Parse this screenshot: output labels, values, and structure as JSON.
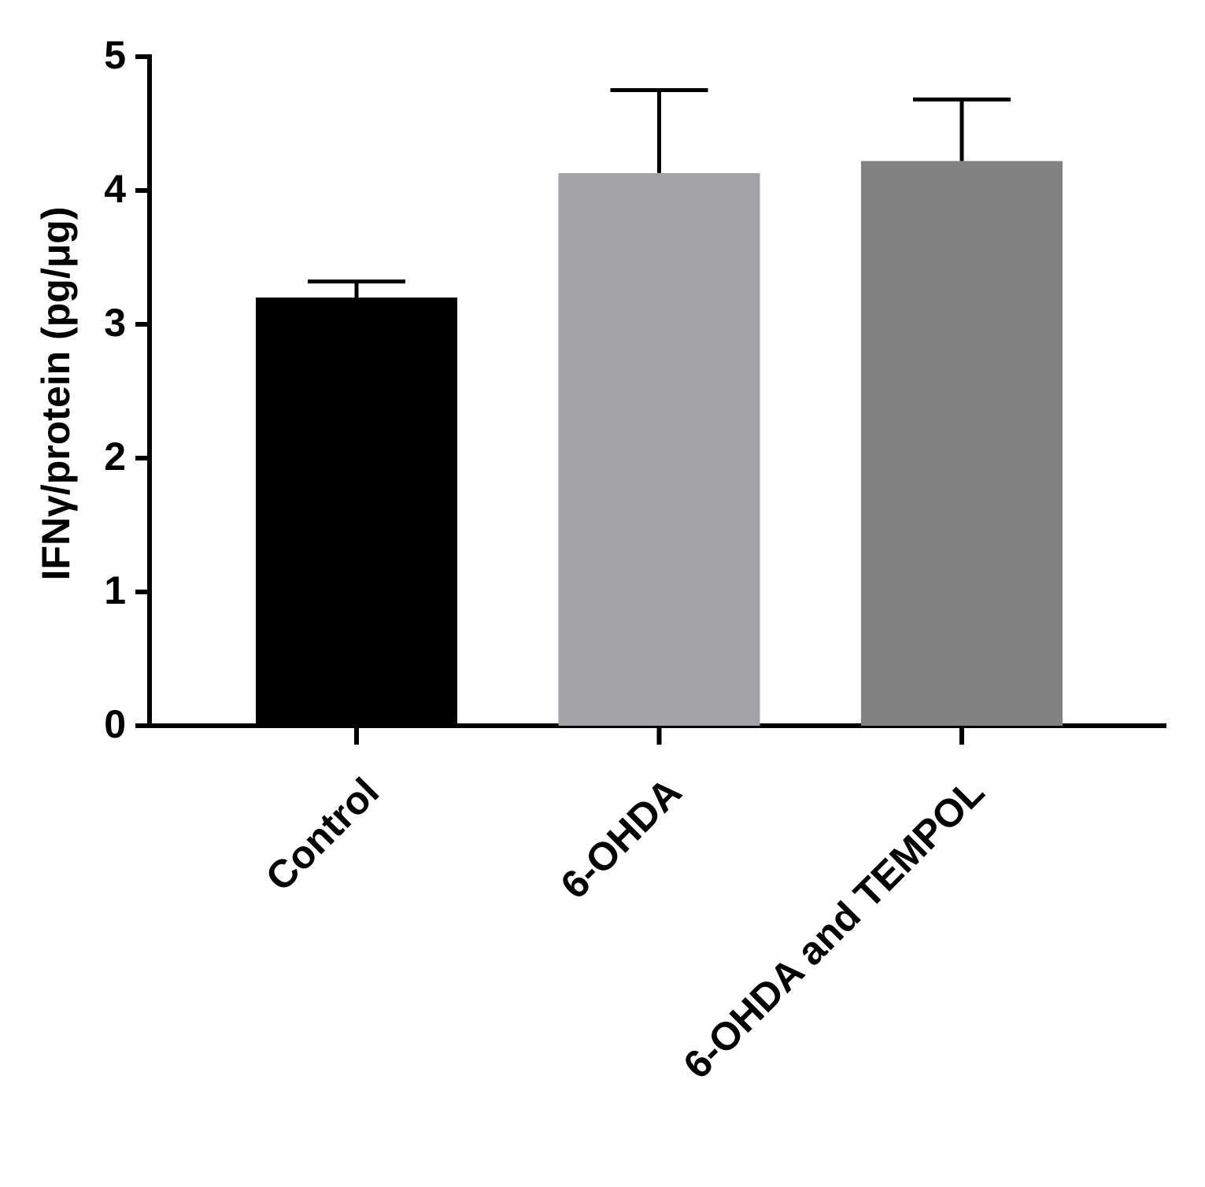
{
  "chart_data": {
    "type": "bar",
    "y_label": "IFNγ/protein (pg/μg)",
    "categories": [
      "Control",
      "6-OHDA",
      "6-OHDA and TEMPOL"
    ],
    "values": [
      3.2,
      4.13,
      4.22
    ],
    "errors": [
      0.12,
      0.62,
      0.46
    ],
    "colors": [
      "#000000",
      "#a3a2a7",
      "#828282"
    ],
    "ylim": [
      0,
      5
    ],
    "yticks": [
      0,
      1,
      2,
      3,
      4,
      5
    ],
    "grid": false
  }
}
